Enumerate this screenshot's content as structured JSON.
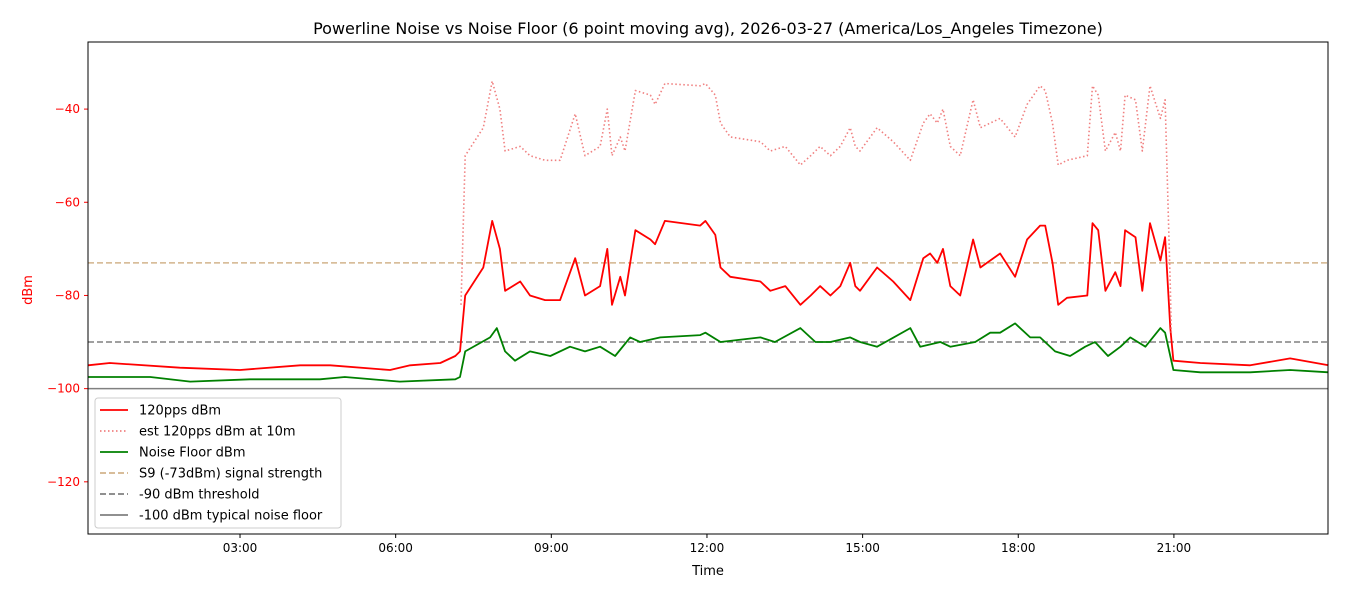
{
  "chart_data": {
    "type": "line",
    "title": "Powerline Noise vs Noise Floor (6 point moving avg), 2026-03-27 (America/Los_Angeles Timezone)",
    "xlabel": "Time",
    "ylabel": "dBm",
    "xlim_hours": [
      0.07,
      23.97
    ],
    "ylim": [
      -131.2,
      -25.6
    ],
    "x_ticks": [
      {
        "value": 3,
        "label": "03:00"
      },
      {
        "value": 6,
        "label": "06:00"
      },
      {
        "value": 9,
        "label": "09:00"
      },
      {
        "value": 12,
        "label": "12:00"
      },
      {
        "value": 15,
        "label": "15:00"
      },
      {
        "value": 18,
        "label": "18:00"
      },
      {
        "value": 21,
        "label": "21:00"
      }
    ],
    "y_ticks": [
      {
        "value": -120,
        "label": "−120"
      },
      {
        "value": -100,
        "label": "−100"
      },
      {
        "value": -80,
        "label": "−80"
      },
      {
        "value": -60,
        "label": "−60"
      },
      {
        "value": -40,
        "label": "−40"
      }
    ],
    "grid": false,
    "legend_placement": "lower-left",
    "series": [
      {
        "name": "120pps dBm",
        "color": "#ff0000",
        "style": "solid",
        "points": [
          [
            0.07,
            -95
          ],
          [
            0.49,
            -94.5
          ],
          [
            1.84,
            -95.5
          ],
          [
            3.0,
            -96
          ],
          [
            4.16,
            -95
          ],
          [
            4.74,
            -95
          ],
          [
            5.89,
            -96
          ],
          [
            6.28,
            -95
          ],
          [
            6.86,
            -94.5
          ],
          [
            7.15,
            -93
          ],
          [
            7.24,
            -92
          ],
          [
            7.34,
            -80
          ],
          [
            7.69,
            -74
          ],
          [
            7.86,
            -64
          ],
          [
            8.01,
            -70
          ],
          [
            8.11,
            -79
          ],
          [
            8.4,
            -77
          ],
          [
            8.59,
            -80
          ],
          [
            8.88,
            -81
          ],
          [
            9.17,
            -81
          ],
          [
            9.46,
            -72
          ],
          [
            9.65,
            -80
          ],
          [
            9.94,
            -78
          ],
          [
            10.08,
            -70
          ],
          [
            10.17,
            -82
          ],
          [
            10.33,
            -76
          ],
          [
            10.42,
            -80
          ],
          [
            10.62,
            -66
          ],
          [
            10.91,
            -68
          ],
          [
            11.0,
            -69
          ],
          [
            11.19,
            -64
          ],
          [
            11.87,
            -65
          ],
          [
            11.97,
            -64
          ],
          [
            12.16,
            -67
          ],
          [
            12.26,
            -74
          ],
          [
            12.45,
            -76
          ],
          [
            13.03,
            -77
          ],
          [
            13.22,
            -79
          ],
          [
            13.51,
            -78
          ],
          [
            13.8,
            -82
          ],
          [
            14.0,
            -80
          ],
          [
            14.18,
            -78
          ],
          [
            14.38,
            -80
          ],
          [
            14.57,
            -78
          ],
          [
            14.76,
            -73
          ],
          [
            14.86,
            -78
          ],
          [
            14.95,
            -79
          ],
          [
            15.28,
            -74
          ],
          [
            15.59,
            -77
          ],
          [
            15.92,
            -81
          ],
          [
            16.17,
            -72
          ],
          [
            16.3,
            -71
          ],
          [
            16.44,
            -73
          ],
          [
            16.55,
            -70
          ],
          [
            16.69,
            -78
          ],
          [
            16.88,
            -80
          ],
          [
            17.13,
            -68
          ],
          [
            17.27,
            -74
          ],
          [
            17.65,
            -71
          ],
          [
            17.94,
            -76
          ],
          [
            18.17,
            -68
          ],
          [
            18.42,
            -65
          ],
          [
            18.52,
            -65
          ],
          [
            18.66,
            -73
          ],
          [
            18.77,
            -82
          ],
          [
            18.94,
            -80.5
          ],
          [
            19.33,
            -80
          ],
          [
            19.43,
            -64.5
          ],
          [
            19.54,
            -66
          ],
          [
            19.68,
            -79
          ],
          [
            19.87,
            -75
          ],
          [
            19.97,
            -78
          ],
          [
            20.06,
            -66
          ],
          [
            20.26,
            -67.5
          ],
          [
            20.39,
            -79
          ],
          [
            20.54,
            -64.5
          ],
          [
            20.74,
            -72.5
          ],
          [
            20.83,
            -67.5
          ],
          [
            20.93,
            -87
          ],
          [
            20.99,
            -94
          ],
          [
            21.51,
            -94.5
          ],
          [
            22.47,
            -95
          ],
          [
            23.24,
            -93.5
          ],
          [
            23.98,
            -95
          ]
        ]
      },
      {
        "name": "est 120pps dBm at 10m",
        "color": "#f08080",
        "style": "dotted",
        "points": [
          [
            7.26,
            -82
          ],
          [
            7.34,
            -50
          ],
          [
            7.69,
            -44
          ],
          [
            7.86,
            -34
          ],
          [
            8.01,
            -40
          ],
          [
            8.11,
            -49
          ],
          [
            8.4,
            -48
          ],
          [
            8.59,
            -50
          ],
          [
            8.88,
            -51
          ],
          [
            9.17,
            -51
          ],
          [
            9.46,
            -41
          ],
          [
            9.65,
            -50
          ],
          [
            9.94,
            -48
          ],
          [
            10.08,
            -40
          ],
          [
            10.17,
            -50
          ],
          [
            10.33,
            -46
          ],
          [
            10.42,
            -49
          ],
          [
            10.62,
            -36
          ],
          [
            10.91,
            -37
          ],
          [
            11.0,
            -39
          ],
          [
            11.19,
            -34.5
          ],
          [
            11.87,
            -35
          ],
          [
            11.97,
            -34.5
          ],
          [
            12.16,
            -37
          ],
          [
            12.26,
            -43
          ],
          [
            12.45,
            -46
          ],
          [
            13.03,
            -47
          ],
          [
            13.22,
            -49
          ],
          [
            13.51,
            -48
          ],
          [
            13.8,
            -52
          ],
          [
            14.0,
            -50
          ],
          [
            14.18,
            -48
          ],
          [
            14.38,
            -50
          ],
          [
            14.57,
            -48
          ],
          [
            14.76,
            -44
          ],
          [
            14.86,
            -48
          ],
          [
            14.95,
            -49
          ],
          [
            15.28,
            -44
          ],
          [
            15.59,
            -47
          ],
          [
            15.92,
            -51
          ],
          [
            16.17,
            -43
          ],
          [
            16.3,
            -41
          ],
          [
            16.44,
            -43
          ],
          [
            16.55,
            -40
          ],
          [
            16.69,
            -48
          ],
          [
            16.88,
            -50
          ],
          [
            17.13,
            -38
          ],
          [
            17.27,
            -44
          ],
          [
            17.65,
            -42
          ],
          [
            17.94,
            -46
          ],
          [
            18.17,
            -39
          ],
          [
            18.42,
            -35
          ],
          [
            18.52,
            -36
          ],
          [
            18.66,
            -43
          ],
          [
            18.77,
            -52
          ],
          [
            18.94,
            -51
          ],
          [
            19.33,
            -50
          ],
          [
            19.43,
            -35
          ],
          [
            19.54,
            -37
          ],
          [
            19.68,
            -49
          ],
          [
            19.87,
            -45
          ],
          [
            19.97,
            -49
          ],
          [
            20.06,
            -37
          ],
          [
            20.26,
            -38
          ],
          [
            20.39,
            -49
          ],
          [
            20.54,
            -35
          ],
          [
            20.74,
            -42
          ],
          [
            20.83,
            -38
          ],
          [
            20.93,
            -78
          ],
          [
            20.95,
            -88
          ]
        ]
      },
      {
        "name": "Noise Floor dBm",
        "color": "#008000",
        "style": "solid",
        "points": [
          [
            0.07,
            -97.5
          ],
          [
            1.27,
            -97.5
          ],
          [
            2.04,
            -98.5
          ],
          [
            3.19,
            -98
          ],
          [
            4.54,
            -98
          ],
          [
            5.02,
            -97.5
          ],
          [
            6.08,
            -98.5
          ],
          [
            7.15,
            -98
          ],
          [
            7.24,
            -97.5
          ],
          [
            7.34,
            -92
          ],
          [
            7.82,
            -89
          ],
          [
            7.95,
            -87
          ],
          [
            8.11,
            -92
          ],
          [
            8.3,
            -94
          ],
          [
            8.59,
            -92
          ],
          [
            8.98,
            -93
          ],
          [
            9.36,
            -91
          ],
          [
            9.65,
            -92
          ],
          [
            9.94,
            -91
          ],
          [
            10.23,
            -93
          ],
          [
            10.52,
            -89
          ],
          [
            10.71,
            -90
          ],
          [
            11.1,
            -89
          ],
          [
            11.87,
            -88.5
          ],
          [
            11.97,
            -88
          ],
          [
            12.26,
            -90
          ],
          [
            13.03,
            -89
          ],
          [
            13.31,
            -90
          ],
          [
            13.8,
            -87
          ],
          [
            14.09,
            -90
          ],
          [
            14.38,
            -90
          ],
          [
            14.76,
            -89
          ],
          [
            14.95,
            -90
          ],
          [
            15.28,
            -91
          ],
          [
            15.92,
            -87
          ],
          [
            16.11,
            -91
          ],
          [
            16.5,
            -90
          ],
          [
            16.69,
            -91
          ],
          [
            17.17,
            -90
          ],
          [
            17.46,
            -88
          ],
          [
            17.65,
            -88
          ],
          [
            17.94,
            -86
          ],
          [
            18.23,
            -89
          ],
          [
            18.42,
            -89
          ],
          [
            18.71,
            -92
          ],
          [
            19.0,
            -93
          ],
          [
            19.29,
            -91
          ],
          [
            19.48,
            -90
          ],
          [
            19.73,
            -93
          ],
          [
            19.97,
            -91
          ],
          [
            20.16,
            -89
          ],
          [
            20.45,
            -91
          ],
          [
            20.74,
            -87
          ],
          [
            20.83,
            -88
          ],
          [
            20.99,
            -96
          ],
          [
            21.51,
            -96.5
          ],
          [
            22.47,
            -96.5
          ],
          [
            23.24,
            -96
          ],
          [
            23.98,
            -96.5
          ]
        ]
      }
    ],
    "reference_lines": [
      {
        "name": "S9 (-73dBm) signal strength",
        "value": -73,
        "color": "#d2b48c",
        "style": "dashed"
      },
      {
        "name": "-90 dBm threshold",
        "value": -90,
        "color": "#808080",
        "style": "dashed"
      },
      {
        "name": "-100 dBm typical noise floor",
        "value": -100,
        "color": "#808080",
        "style": "solid"
      }
    ],
    "axis_color_y": "#ff0000"
  }
}
